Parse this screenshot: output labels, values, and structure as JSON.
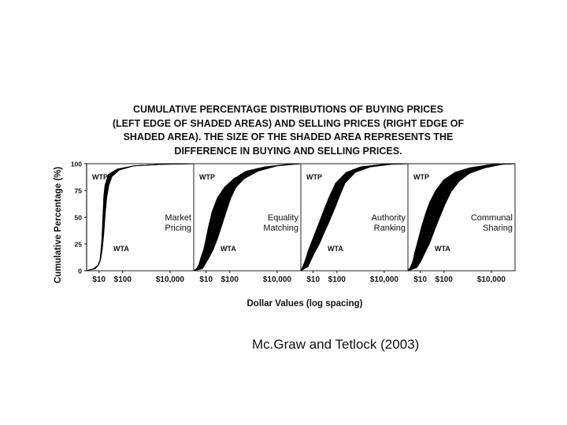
{
  "title_lines": [
    "CUMULATIVE PERCENTAGE DISTRIBUTIONS OF BUYING PRICES",
    "(LEFT EDGE OF SHADED AREAS) AND SELLING PRICES (RIGHT EDGE OF",
    "SHADED AREA).  THE SIZE OF THE SHADED AREA REPRESENTS THE",
    "DIFFERENCE IN BUYING AND SELLING PRICES."
  ],
  "credit": "Mc.Graw and Tetlock (2003)",
  "chart_data": {
    "type": "area",
    "xlabel": "Dollar Values (log spacing)",
    "ylabel": "Cumulative Percentage (%)",
    "x_scale": "log",
    "xlim": [
      3,
      100000
    ],
    "ylim": [
      0,
      100
    ],
    "y_ticks": [
      "0",
      "25",
      "50",
      "75",
      "100"
    ],
    "x_ticks": [
      {
        "value": 10,
        "label": "$10"
      },
      {
        "value": 100,
        "label": "$100"
      },
      {
        "value": 10000,
        "label": "$10,000"
      }
    ],
    "grid": false,
    "series_labels": {
      "upper_left": "WTP",
      "lower_right": "WTA"
    },
    "panels": [
      {
        "name": "Market Pricing",
        "name_lines": [
          "Market",
          "Pricing"
        ],
        "wtp": [
          [
            3,
            0
          ],
          [
            6,
            2
          ],
          [
            9,
            5
          ],
          [
            11,
            10
          ],
          [
            12,
            18
          ],
          [
            13,
            26
          ],
          [
            14,
            40
          ],
          [
            15,
            55
          ],
          [
            16,
            70
          ],
          [
            18,
            80
          ],
          [
            25,
            90
          ],
          [
            60,
            95
          ],
          [
            300,
            98
          ],
          [
            5000,
            99.5
          ],
          [
            100000,
            100
          ]
        ],
        "wta": [
          [
            3,
            0
          ],
          [
            7,
            2
          ],
          [
            10,
            6
          ],
          [
            12,
            12
          ],
          [
            14,
            22
          ],
          [
            16,
            36
          ],
          [
            18,
            52
          ],
          [
            21,
            68
          ],
          [
            26,
            80
          ],
          [
            35,
            88
          ],
          [
            70,
            94
          ],
          [
            300,
            98
          ],
          [
            5000,
            99.5
          ],
          [
            100000,
            100
          ]
        ]
      },
      {
        "name": "Equality Matching",
        "name_lines": [
          "Equality",
          "Matching"
        ],
        "wtp": [
          [
            3,
            0
          ],
          [
            4,
            2
          ],
          [
            5,
            6
          ],
          [
            6,
            12
          ],
          [
            8,
            20
          ],
          [
            10,
            30
          ],
          [
            13,
            42
          ],
          [
            18,
            55
          ],
          [
            30,
            68
          ],
          [
            60,
            78
          ],
          [
            150,
            86
          ],
          [
            500,
            93
          ],
          [
            3000,
            97
          ],
          [
            30000,
            99.5
          ],
          [
            100000,
            100
          ]
        ],
        "wta": [
          [
            3,
            0
          ],
          [
            7,
            2
          ],
          [
            9,
            6
          ],
          [
            13,
            12
          ],
          [
            20,
            20
          ],
          [
            30,
            30
          ],
          [
            45,
            42
          ],
          [
            70,
            55
          ],
          [
            110,
            68
          ],
          [
            180,
            78
          ],
          [
            400,
            86
          ],
          [
            1500,
            93
          ],
          [
            10000,
            98
          ],
          [
            50000,
            99.5
          ],
          [
            100000,
            100
          ]
        ]
      },
      {
        "name": "Authority Ranking",
        "name_lines": [
          "Authority",
          "Ranking"
        ],
        "wtp": [
          [
            3,
            0
          ],
          [
            4,
            6
          ],
          [
            5,
            12
          ],
          [
            6,
            18
          ],
          [
            8,
            25
          ],
          [
            12,
            35
          ],
          [
            18,
            45
          ],
          [
            30,
            58
          ],
          [
            50,
            70
          ],
          [
            90,
            82
          ],
          [
            250,
            92
          ],
          [
            1000,
            97
          ],
          [
            10000,
            99.5
          ],
          [
            100000,
            100
          ]
        ],
        "wta": [
          [
            3,
            0
          ],
          [
            6,
            4
          ],
          [
            8,
            10
          ],
          [
            12,
            18
          ],
          [
            18,
            25
          ],
          [
            28,
            35
          ],
          [
            45,
            45
          ],
          [
            80,
            58
          ],
          [
            130,
            70
          ],
          [
            220,
            82
          ],
          [
            600,
            92
          ],
          [
            2500,
            97
          ],
          [
            20000,
            99.5
          ],
          [
            100000,
            100
          ]
        ]
      },
      {
        "name": "Communal Sharing",
        "name_lines": [
          "Communal",
          "Sharing"
        ],
        "wtp": [
          [
            3,
            0
          ],
          [
            4,
            4
          ],
          [
            5,
            10
          ],
          [
            6,
            18
          ],
          [
            8,
            28
          ],
          [
            11,
            40
          ],
          [
            16,
            52
          ],
          [
            25,
            64
          ],
          [
            45,
            75
          ],
          [
            100,
            85
          ],
          [
            300,
            92
          ],
          [
            1200,
            96
          ],
          [
            8000,
            99
          ],
          [
            100000,
            100
          ]
        ],
        "wta": [
          [
            3,
            0
          ],
          [
            7,
            3
          ],
          [
            10,
            8
          ],
          [
            15,
            16
          ],
          [
            25,
            26
          ],
          [
            40,
            38
          ],
          [
            65,
            50
          ],
          [
            110,
            62
          ],
          [
            200,
            74
          ],
          [
            450,
            84
          ],
          [
            1200,
            91
          ],
          [
            5000,
            96
          ],
          [
            30000,
            99.5
          ],
          [
            100000,
            100
          ]
        ]
      }
    ]
  }
}
